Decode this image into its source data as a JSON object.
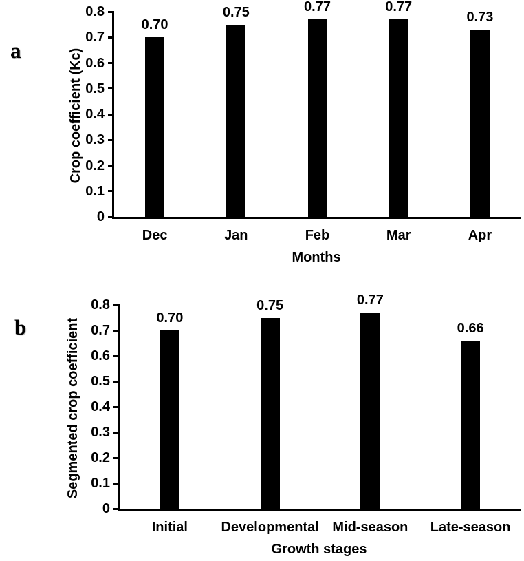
{
  "figure": {
    "background": "#ffffff",
    "text_color": "#000000"
  },
  "chart_data": [
    {
      "type": "bar",
      "panel_label": "a",
      "categories": [
        "Dec",
        "Jan",
        "Feb",
        "Mar",
        "Apr"
      ],
      "values": [
        0.7,
        0.75,
        0.77,
        0.77,
        0.73
      ],
      "value_labels": [
        "0.70",
        "0.75",
        "0.77",
        "0.77",
        "0.73"
      ],
      "xlabel": "Months",
      "ylabel": "Crop coefficient (Kc)",
      "ylim": [
        0,
        0.8
      ],
      "ytick_labels": [
        "0.8",
        "0.7",
        "0.6",
        "0.5",
        "0.4",
        "0.3",
        "0.2",
        "0.1",
        "0"
      ],
      "bar_color": "#000000",
      "grid": false,
      "legend_position": "none"
    },
    {
      "type": "bar",
      "panel_label": "b",
      "categories": [
        "Initial",
        "Developmental",
        "Mid-season",
        "Late-season"
      ],
      "values": [
        0.7,
        0.75,
        0.77,
        0.66
      ],
      "value_labels": [
        "0.70",
        "0.75",
        "0.77",
        "0.66"
      ],
      "xlabel": "Growth stages",
      "ylabel": "Segmented crop coefficient",
      "ylim": [
        0,
        0.8
      ],
      "ytick_labels": [
        "0.8",
        "0.7",
        "0.6",
        "0.5",
        "0.4",
        "0.3",
        "0.2",
        "0.1",
        "0"
      ],
      "bar_color": "#000000",
      "grid": false,
      "legend_position": "none"
    }
  ]
}
